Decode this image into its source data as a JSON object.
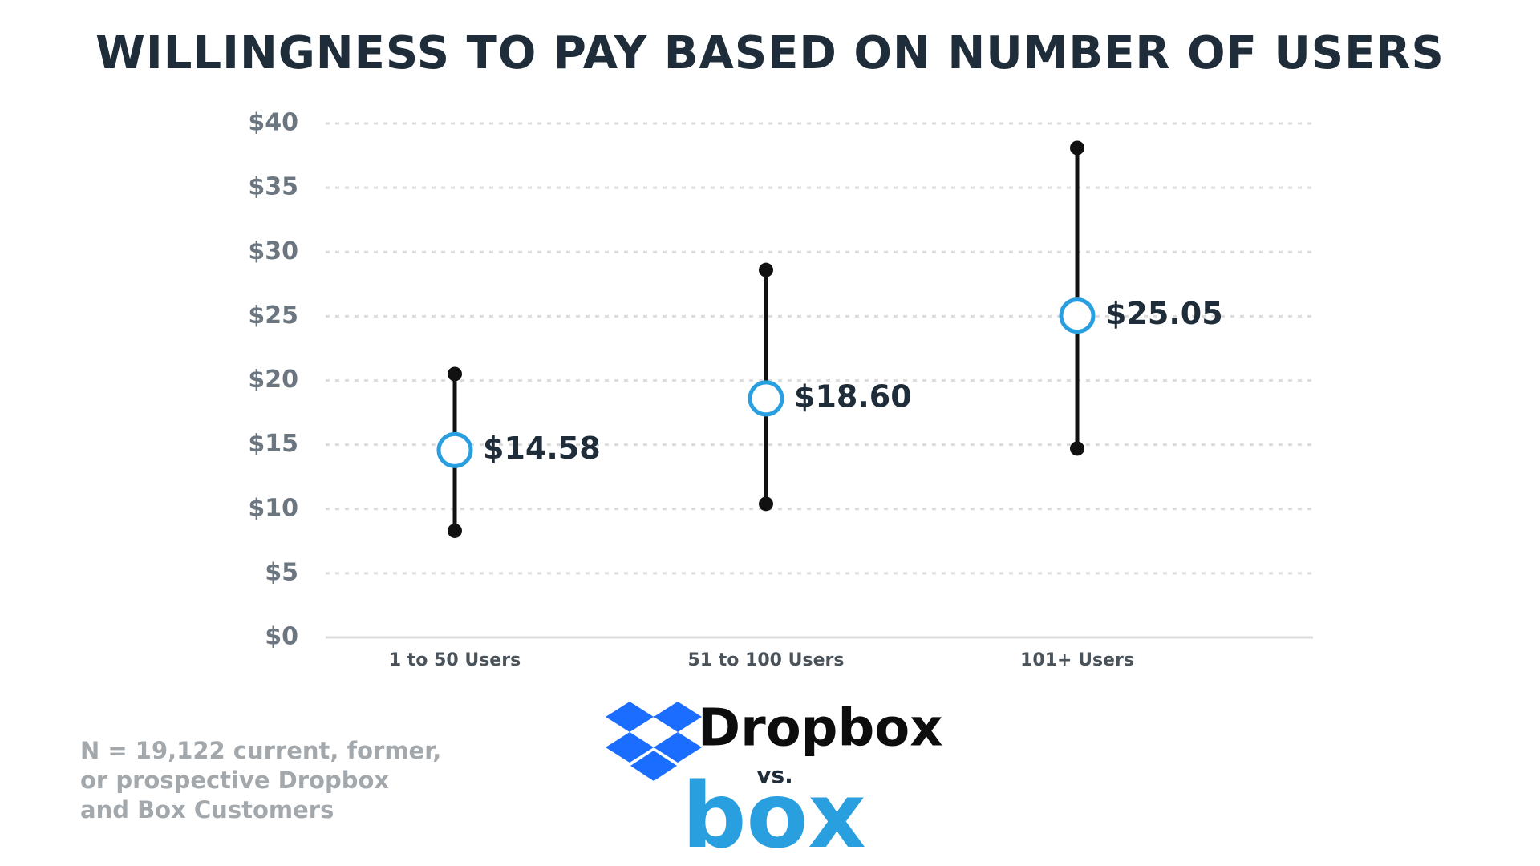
{
  "chart_data": {
    "type": "dot_range",
    "title": "WILLINGNESS TO PAY BASED ON NUMBER OF USERS",
    "categories": [
      "1 to 50 Users",
      "51 to 100 Users",
      "101+ Users"
    ],
    "series": [
      {
        "color": "#2a9fe0",
        "values": [
          14.58,
          18.6,
          25.05
        ],
        "value_labels": [
          "$14.58",
          "$18.60",
          "$25.05"
        ],
        "low": [
          8.3,
          10.4,
          14.7
        ],
        "high": [
          20.5,
          28.6,
          38.1
        ]
      }
    ],
    "range_color": "#111111",
    "ylim": [
      0,
      40
    ],
    "yticks": [
      {
        "value": 0,
        "label": "$0"
      },
      {
        "value": 5,
        "label": "$5"
      },
      {
        "value": 10,
        "label": "$10"
      },
      {
        "value": 15,
        "label": "$15"
      },
      {
        "value": 20,
        "label": "$20"
      },
      {
        "value": 25,
        "label": "$25"
      },
      {
        "value": 30,
        "label": "$30"
      },
      {
        "value": 35,
        "label": "$35"
      },
      {
        "value": 40,
        "label": "$40"
      }
    ],
    "grid": true,
    "note": [
      "N = 19,122 current, former,",
      "or prospective Dropbox",
      "and Box Customers"
    ],
    "logos": [
      "Dropbox",
      "vs.",
      "box"
    ]
  }
}
